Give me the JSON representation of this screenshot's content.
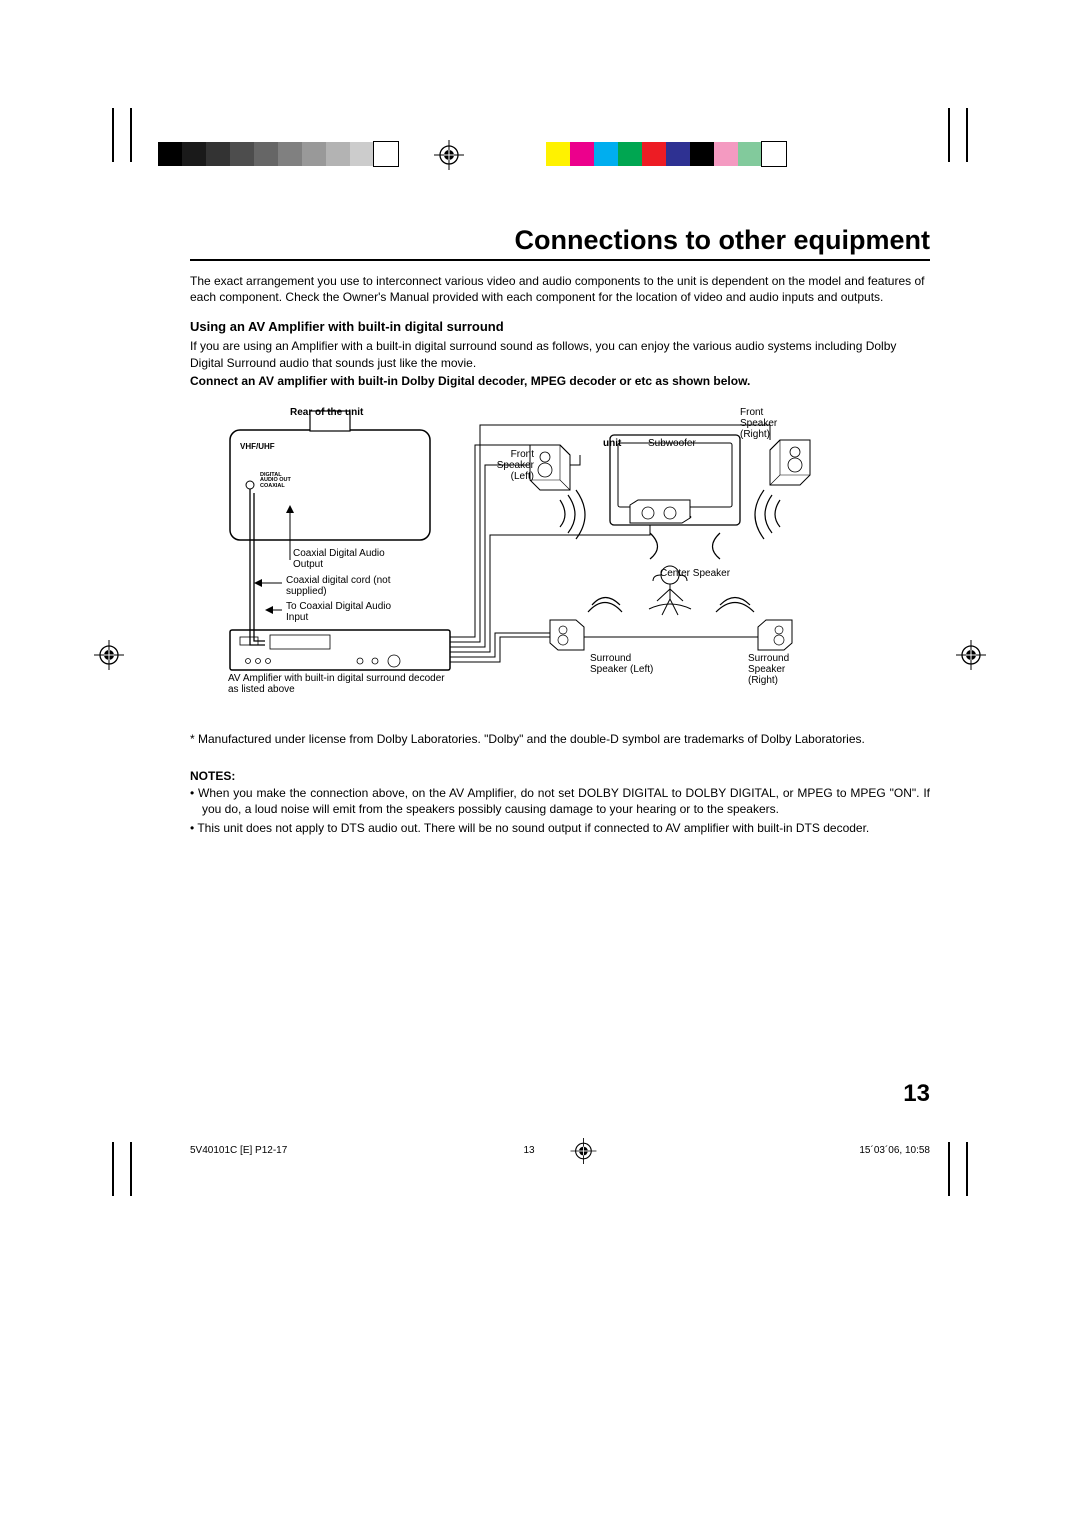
{
  "colorbars": {
    "gray": [
      "#000000",
      "#1a1a1a",
      "#333333",
      "#4d4d4d",
      "#666666",
      "#808080",
      "#999999",
      "#b3b3b3",
      "#cccccc",
      "#ffffff"
    ],
    "color": [
      "#fff200",
      "#ec008c",
      "#00aeef",
      "#00a651",
      "#ed1c24",
      "#2e3192",
      "#000000",
      "#f49ac1",
      "#82ca9c",
      "#ffffff"
    ]
  },
  "title": "Connections to other equipment",
  "intro": "The exact arrangement you use to interconnect various video and audio components to the unit is dependent on the model and features of each component. Check the Owner's Manual provided with each component for the location of video and audio inputs and outputs.",
  "section_heading": "Using an AV Amplifier with built-in digital surround",
  "section_body": "If you are using an Amplifier with a built-in digital surround sound as follows, you can enjoy the various audio systems including Dolby Digital Surround audio that sounds just like the movie.",
  "section_bold": "Connect an AV amplifier with built-in Dolby Digital decoder, MPEG decoder or etc as shown below.",
  "diagram": {
    "rear_of_unit": "Rear of the unit",
    "vhf_uhf": "VHF/UHF",
    "digital_audio_out": "DIGITAL\nAUDIO OUT\nCOAXIAL",
    "coax_out": "Coaxial Digital Audio Output",
    "coax_cord": "Coaxial digital cord (not supplied)",
    "to_coax_in": "To Coaxial Digital Audio Input",
    "amp_caption": "AV Amplifier with built-in digital surround decoder as listed above",
    "unit": "unit",
    "subwoofer": "Subwoofer",
    "front_left": "Front Speaker (Left)",
    "front_right": "Front Speaker (Right)",
    "center": "Center Speaker",
    "surround_left": "Surround Speaker (Left)",
    "surround_right": "Surround Speaker (Right)"
  },
  "footnote": "* Manufactured under license from Dolby Laboratories. \"Dolby\" and the double-D symbol are trademarks of Dolby Laboratories.",
  "notes_heading": "NOTES:",
  "notes": [
    "• When you make the connection above, on the AV Amplifier, do not set DOLBY DIGITAL to DOLBY DIGITAL, or MPEG to MPEG \"ON\". If you do, a loud noise will emit from the speakers possibly causing damage to your hearing or to the speakers.",
    "• This unit does not apply to DTS audio out. There will be no sound output if connected to AV amplifier with built-in DTS decoder."
  ],
  "page_number": "13",
  "footer": {
    "left": "5V40101C [E] P12-17",
    "center_num": "13",
    "right": "15´03´06, 10:58"
  }
}
